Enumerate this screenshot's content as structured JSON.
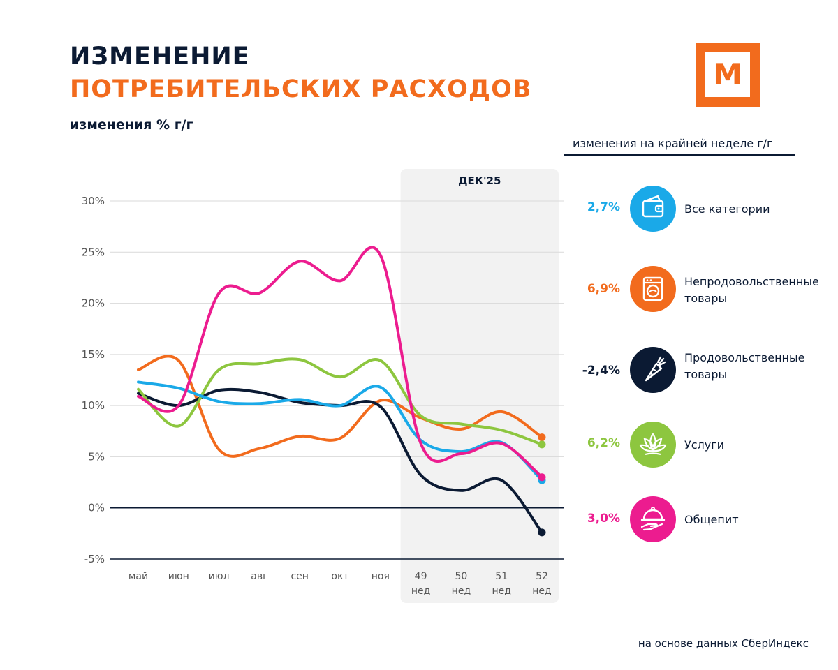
{
  "header": {
    "title_line1": "ИЗМЕНЕНИЕ",
    "title_line2": "ПОТРЕБИТЕЛЬСКИХ РАСХОДОВ",
    "subtitle": "изменения % г/г"
  },
  "logo": {
    "letter": "М"
  },
  "legend": {
    "title": "изменения на крайней неделе г/г",
    "items": [
      {
        "value": "2,7%",
        "label_line1": "Все категории",
        "label_line2": "",
        "color": "#1aa9e8",
        "icon": "wallet-icon"
      },
      {
        "value": "6,9%",
        "label_line1": "Непродовольственные",
        "label_line2": "товары",
        "color": "#f26b1d",
        "icon": "washing-machine-icon"
      },
      {
        "value": "-2,4%",
        "label_line1": "Продовольственные",
        "label_line2": "товары",
        "color": "#0b1a33",
        "icon": "carrot-icon"
      },
      {
        "value": "6,2%",
        "label_line1": "Услуги",
        "label_line2": "",
        "color": "#8dc63f",
        "icon": "lotus-icon"
      },
      {
        "value": "3,0%",
        "label_line1": "Общепит",
        "label_line2": "",
        "color": "#ec1c8f",
        "icon": "cloche-icon"
      }
    ]
  },
  "footnote": "на основе данных СберИндекс",
  "chart_data": {
    "type": "line",
    "title": "",
    "xlabel": "",
    "ylabel": "",
    "ylim": [
      -5,
      30
    ],
    "yticks": [
      "-5%",
      "0%",
      "5%",
      "10%",
      "15%",
      "20%",
      "25%",
      "30%"
    ],
    "ytick_values": [
      -5,
      0,
      5,
      10,
      15,
      20,
      25,
      30
    ],
    "categories": [
      "май",
      "июн",
      "июл",
      "авг",
      "сен",
      "окт",
      "ноя",
      "49 нед",
      "50 нед",
      "51 нед",
      "52 нед"
    ],
    "category_lines": [
      [
        "май"
      ],
      [
        "июн"
      ],
      [
        "июл"
      ],
      [
        "авг"
      ],
      [
        "сен"
      ],
      [
        "окт"
      ],
      [
        "ноя"
      ],
      [
        "49",
        "нед"
      ],
      [
        "50",
        "нед"
      ],
      [
        "51",
        "нед"
      ],
      [
        "52",
        "нед"
      ]
    ],
    "highlight": {
      "label": "ДЕК'25",
      "from_index": 7,
      "to_index": 10
    },
    "grid": true,
    "series": [
      {
        "name": "Все категории",
        "color": "#1aa9e8",
        "values": [
          12.3,
          11.7,
          10.4,
          10.2,
          10.6,
          10.0,
          11.8,
          6.6,
          5.5,
          6.4,
          2.7
        ]
      },
      {
        "name": "Непродовольственные товары",
        "color": "#f26b1d",
        "values": [
          13.5,
          14.4,
          5.7,
          5.8,
          7.0,
          6.8,
          10.5,
          8.8,
          7.7,
          9.4,
          6.9
        ]
      },
      {
        "name": "Продовольственные товары",
        "color": "#0b1a33",
        "values": [
          11.2,
          10.0,
          11.5,
          11.3,
          10.3,
          10.0,
          9.9,
          3.2,
          1.7,
          2.7,
          -2.4
        ]
      },
      {
        "name": "Услуги",
        "color": "#8dc63f",
        "values": [
          11.6,
          8.0,
          13.5,
          14.1,
          14.5,
          12.8,
          14.4,
          9.0,
          8.2,
          7.6,
          6.2
        ]
      },
      {
        "name": "Общепит",
        "color": "#ec1c8f",
        "values": [
          10.9,
          10.0,
          21.0,
          21.0,
          24.1,
          22.2,
          24.7,
          6.3,
          5.3,
          6.3,
          3.0
        ]
      }
    ]
  }
}
